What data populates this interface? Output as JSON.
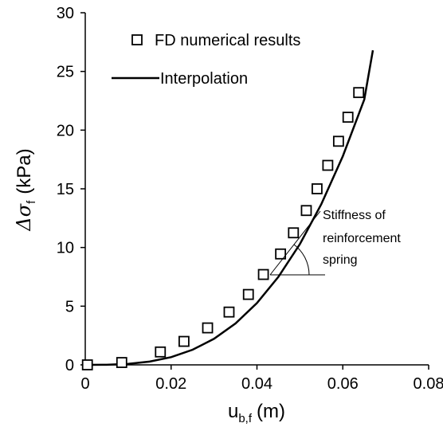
{
  "chart_data": {
    "type": "scatter",
    "xlim": [
      0,
      0.08
    ],
    "ylim": [
      0,
      30
    ],
    "x_ticks": [
      "0",
      "0.02",
      "0.04",
      "0.06",
      "0.08"
    ],
    "y_ticks": [
      "0",
      "5",
      "10",
      "15",
      "20",
      "25",
      "30"
    ],
    "grid": false,
    "legend_position": "top-left",
    "xlabel": {
      "main": "u",
      "sub": "b,f",
      "unit": "(m)"
    },
    "ylabel": {
      "main": "Δσ",
      "sub": "f",
      "unit": "(kPa)"
    },
    "series": [
      {
        "name": "FD numerical results",
        "marker": "open-square",
        "color": "#000000",
        "points": [
          [
            0.0005,
            0.0
          ],
          [
            0.0085,
            0.2
          ],
          [
            0.0175,
            1.1
          ],
          [
            0.023,
            2.0
          ],
          [
            0.0285,
            3.15
          ],
          [
            0.0335,
            4.5
          ],
          [
            0.038,
            6.0
          ],
          [
            0.0415,
            7.7
          ],
          [
            0.0455,
            9.45
          ],
          [
            0.0485,
            11.25
          ],
          [
            0.0515,
            13.15
          ],
          [
            0.054,
            15.0
          ],
          [
            0.0565,
            17.0
          ],
          [
            0.059,
            19.05
          ],
          [
            0.0612,
            21.1
          ],
          [
            0.0637,
            23.2
          ]
        ]
      },
      {
        "name": "Interpolation",
        "style": "solid-line",
        "color": "#000000",
        "points": [
          [
            0.0,
            0.0
          ],
          [
            0.005,
            0.01
          ],
          [
            0.01,
            0.08
          ],
          [
            0.015,
            0.28
          ],
          [
            0.02,
            0.66
          ],
          [
            0.025,
            1.29
          ],
          [
            0.03,
            2.22
          ],
          [
            0.035,
            3.53
          ],
          [
            0.04,
            5.27
          ],
          [
            0.045,
            7.5
          ],
          [
            0.05,
            10.29
          ],
          [
            0.055,
            13.7
          ],
          [
            0.06,
            17.78
          ],
          [
            0.065,
            22.61
          ],
          [
            0.067,
            26.8
          ]
        ]
      }
    ],
    "annotation": {
      "lines": [
        "Stiffness of",
        "reinforcement",
        "spring"
      ]
    }
  }
}
